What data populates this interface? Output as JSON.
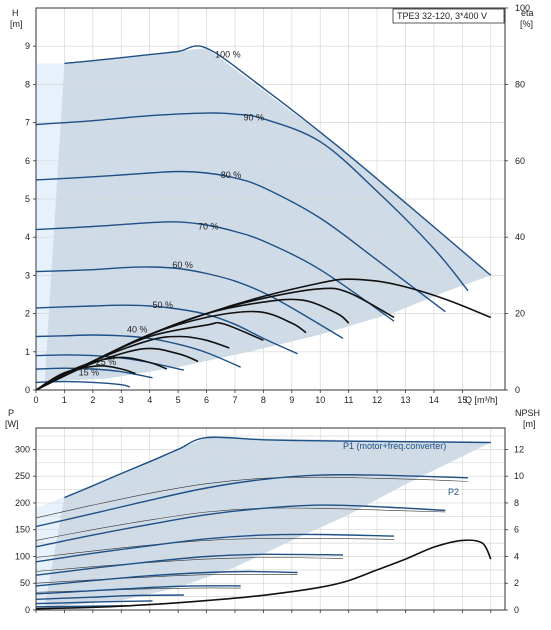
{
  "chart_data": [
    {
      "type": "line",
      "title": "TPE3 32-120, 3*400 V",
      "xlabel": "Q [m³/h]",
      "ylabel": "H\n[m]",
      "y2label": "eta\n[%]",
      "xlim": [
        0,
        16.5
      ],
      "ylim": [
        0,
        10
      ],
      "y2lim": [
        0,
        100
      ],
      "xticks": [
        "0",
        "1",
        "2",
        "3",
        "4",
        "5",
        "6",
        "7",
        "8",
        "9",
        "10",
        "11",
        "12",
        "13",
        "14",
        "15"
      ],
      "yticks": [
        "0",
        "1",
        "2",
        "3",
        "4",
        "5",
        "6",
        "7",
        "8",
        "9"
      ],
      "y2ticks": [
        "0",
        "20",
        "40",
        "60",
        "80",
        "100"
      ],
      "grid": true,
      "operating_area": {
        "color": "#cfdce8",
        "boundary": [
          [
            1,
            8.55
          ],
          [
            6,
            8.95
          ],
          [
            10.5,
            6.45
          ],
          [
            16,
            3.0
          ],
          [
            14.5,
            2.6
          ],
          [
            12.5,
            2.0
          ],
          [
            10,
            1.45
          ],
          [
            7.5,
            1.0
          ],
          [
            5,
            0.6
          ],
          [
            2.5,
            0.3
          ],
          [
            0.3,
            0.22
          ]
        ],
        "light_region": [
          [
            0,
            8.55
          ],
          [
            1,
            8.55
          ],
          [
            0.3,
            0.22
          ],
          [
            0,
            0.22
          ]
        ],
        "light_color": "#e6f1fb"
      },
      "series": [
        {
          "label": "100 %",
          "x": [
            1,
            2,
            3,
            4,
            5,
            6,
            8,
            10.5,
            13,
            16
          ],
          "y": [
            8.55,
            8.62,
            8.7,
            8.78,
            8.86,
            8.95,
            7.9,
            6.45,
            4.9,
            3.0
          ]
        },
        {
          "label": "90 %",
          "x": [
            0,
            2,
            4,
            6,
            7,
            8,
            10,
            12,
            14,
            15.2
          ],
          "y": [
            6.95,
            7.05,
            7.18,
            7.25,
            7.22,
            7.1,
            6.5,
            5.2,
            3.7,
            2.6
          ]
        },
        {
          "label": "80 %",
          "x": [
            0,
            2,
            4,
            5,
            6,
            7,
            8,
            10,
            12,
            14.4
          ],
          "y": [
            5.5,
            5.58,
            5.68,
            5.72,
            5.68,
            5.55,
            5.3,
            4.5,
            3.4,
            2.05
          ]
        },
        {
          "label": "70 %",
          "x": [
            0,
            2,
            4,
            5,
            6,
            7,
            8,
            10,
            12.6
          ],
          "y": [
            4.2,
            4.28,
            4.38,
            4.4,
            4.32,
            4.15,
            3.9,
            3.15,
            1.8
          ]
        },
        {
          "label": "60 %",
          "x": [
            0,
            2,
            3,
            4,
            5,
            6,
            7,
            8,
            9,
            10.8
          ],
          "y": [
            3.1,
            3.15,
            3.2,
            3.22,
            3.18,
            3.05,
            2.85,
            2.55,
            2.15,
            1.35
          ]
        },
        {
          "label": "50 %",
          "x": [
            0,
            2,
            3,
            4,
            5,
            6,
            7,
            8,
            9.2
          ],
          "y": [
            2.15,
            2.2,
            2.22,
            2.2,
            2.12,
            1.98,
            1.72,
            1.35,
            0.95
          ]
        },
        {
          "label": "40 %",
          "x": [
            0,
            1,
            2,
            3,
            4,
            5,
            6,
            7.2
          ],
          "y": [
            1.4,
            1.42,
            1.44,
            1.42,
            1.35,
            1.2,
            0.98,
            0.6
          ]
        },
        {
          "label": "",
          "x": [
            0,
            1,
            2,
            3,
            4,
            5.2
          ],
          "y": [
            0.9,
            0.92,
            0.9,
            0.84,
            0.72,
            0.52
          ]
        },
        {
          "label": "25 %",
          "x": [
            0,
            1,
            2,
            3,
            4.1
          ],
          "y": [
            0.55,
            0.57,
            0.55,
            0.48,
            0.32
          ]
        },
        {
          "label": "15 %",
          "x": [
            0,
            1,
            2,
            3,
            3.3
          ],
          "y": [
            0.2,
            0.22,
            0.2,
            0.14,
            0.08
          ]
        }
      ],
      "eta_series": [
        {
          "x": [
            0,
            2,
            4,
            6,
            8,
            10,
            10.9,
            12,
            13,
            14.5,
            16
          ],
          "y": [
            0,
            7.5,
            14.5,
            20,
            24.5,
            28,
            29,
            28.5,
            27,
            23.5,
            19
          ]
        },
        {
          "x": [
            0,
            2,
            4,
            6,
            8,
            10,
            11,
            12.6
          ],
          "y": [
            0,
            7.5,
            14.5,
            20,
            24,
            26.5,
            25.5,
            19
          ]
        },
        {
          "x": [
            0,
            2,
            4,
            6,
            8,
            9.4,
            10.6,
            11
          ],
          "y": [
            0,
            7.5,
            14.5,
            20,
            23,
            23.5,
            20,
            17.5
          ]
        },
        {
          "x": [
            0,
            2,
            4,
            6,
            7.8,
            9,
            9.5
          ],
          "y": [
            0,
            7.5,
            14.5,
            19,
            20.5,
            17.5,
            15
          ]
        },
        {
          "x": [
            0,
            2,
            4,
            6,
            6.6,
            8
          ],
          "y": [
            0,
            7.5,
            14,
            17,
            17.3,
            13
          ]
        },
        {
          "x": [
            0,
            2,
            4,
            5.1,
            6,
            6.8
          ],
          "y": [
            0,
            7.5,
            13,
            14,
            13,
            11
          ]
        },
        {
          "x": [
            0,
            2,
            3.8,
            5,
            5.7
          ],
          "y": [
            0,
            7,
            10.8,
            9.5,
            7.5
          ]
        },
        {
          "x": [
            0,
            1.5,
            2.9,
            4,
            4.6
          ],
          "y": [
            0,
            6,
            8.5,
            7.2,
            5.5
          ]
        },
        {
          "x": [
            0,
            1,
            2.2,
            3,
            3.5
          ],
          "y": [
            0,
            4.5,
            6.3,
            5.5,
            4.3
          ]
        }
      ],
      "annotations": [
        "100 %",
        "90 %",
        "80 %",
        "70 %",
        "60 %",
        "50 %",
        "40 %",
        "25 %",
        "15 %"
      ]
    },
    {
      "type": "line",
      "title": "",
      "xlabel": "",
      "ylabel": "P\n[W]",
      "y2label": "NPSH\n[m]",
      "xlim": [
        0,
        16.5
      ],
      "ylim": [
        0,
        340
      ],
      "y2lim": [
        0,
        13.6
      ],
      "yticks": [
        "0",
        "50",
        "100",
        "150",
        "200",
        "250",
        "300"
      ],
      "y2ticks": [
        "0",
        "2",
        "4",
        "6",
        "8",
        "10",
        "12"
      ],
      "grid": true,
      "operating_area": {
        "color": "#cfdce8",
        "boundary": [
          [
            1,
            212
          ],
          [
            6,
            322
          ],
          [
            16,
            313
          ],
          [
            13,
            235
          ],
          [
            11,
            178
          ],
          [
            9,
            130
          ],
          [
            7,
            80
          ],
          [
            5,
            42
          ],
          [
            3,
            18
          ],
          [
            0.3,
            5
          ]
        ],
        "light_region": [
          [
            0,
            190
          ],
          [
            1,
            212
          ],
          [
            0.3,
            5
          ],
          [
            0,
            5
          ]
        ],
        "light_color": "#e6f1fb"
      },
      "p1_label": "P1 (motor+freq.converter)",
      "p2_label": "P2",
      "p1_series": [
        {
          "x": [
            1,
            2,
            3,
            4,
            5,
            6,
            8,
            10,
            12,
            14,
            16
          ],
          "y": [
            210,
            232,
            255,
            277,
            300,
            322,
            318,
            316,
            315,
            314,
            313
          ]
        },
        {
          "x": [
            0,
            2,
            4,
            6,
            8,
            10,
            12,
            15.2
          ],
          "y": [
            156,
            180,
            205,
            228,
            244,
            252,
            252,
            247
          ]
        },
        {
          "x": [
            0,
            2,
            4,
            6,
            8,
            10,
            12,
            14.4
          ],
          "y": [
            118,
            140,
            160,
            178,
            190,
            196,
            193,
            186
          ]
        },
        {
          "x": [
            0,
            2,
            4,
            6,
            8,
            10,
            12.6
          ],
          "y": [
            90,
            106,
            120,
            133,
            140,
            141,
            138
          ]
        },
        {
          "x": [
            0,
            2,
            4,
            6,
            8,
            10.8
          ],
          "y": [
            65,
            78,
            90,
            100,
            104,
            103
          ]
        },
        {
          "x": [
            0,
            2,
            4,
            6,
            7.5,
            9.2
          ],
          "y": [
            45,
            55,
            64,
            70,
            72,
            70
          ]
        },
        {
          "x": [
            0,
            2,
            4,
            5.5,
            7.2
          ],
          "y": [
            30,
            36,
            42,
            45,
            45
          ]
        },
        {
          "x": [
            0,
            2,
            3.5,
            5.2
          ],
          "y": [
            20,
            24,
            27,
            28
          ]
        },
        {
          "x": [
            0,
            1.5,
            3,
            4.1
          ],
          "y": [
            12,
            14,
            16,
            17
          ]
        },
        {
          "x": [
            0,
            1.5,
            3.3
          ],
          "y": [
            6,
            7,
            8
          ]
        }
      ],
      "p2_series": [
        {
          "x": [
            0,
            2,
            4,
            6,
            8,
            10,
            12,
            14,
            15.2
          ],
          "y": [
            172,
            196,
            218,
            236,
            246,
            248,
            246,
            243,
            240
          ]
        },
        {
          "x": [
            0,
            2,
            4,
            6,
            8,
            10,
            12,
            14.4
          ],
          "y": [
            130,
            150,
            168,
            183,
            190,
            190,
            187,
            183
          ]
        },
        {
          "x": [
            0,
            3,
            6,
            9,
            12.6
          ],
          "y": [
            98,
            116,
            130,
            134,
            132
          ]
        },
        {
          "x": [
            0,
            3,
            6,
            8.5,
            10.8
          ],
          "y": [
            72,
            85,
            95,
            98,
            96
          ]
        },
        {
          "x": [
            0,
            3,
            6,
            9.2
          ],
          "y": [
            50,
            59,
            66,
            66
          ]
        },
        {
          "x": [
            0,
            3,
            5.5,
            7.2
          ],
          "y": [
            33,
            38,
            41,
            41
          ]
        }
      ],
      "npsh": {
        "x": [
          0,
          2,
          4,
          6,
          8,
          10,
          11,
          12,
          13,
          14,
          15,
          15.7,
          16
        ],
        "y": [
          0.1,
          0.2,
          0.4,
          0.7,
          1.1,
          1.7,
          2.2,
          3.0,
          3.8,
          4.7,
          5.2,
          5.0,
          3.8
        ]
      }
    }
  ]
}
